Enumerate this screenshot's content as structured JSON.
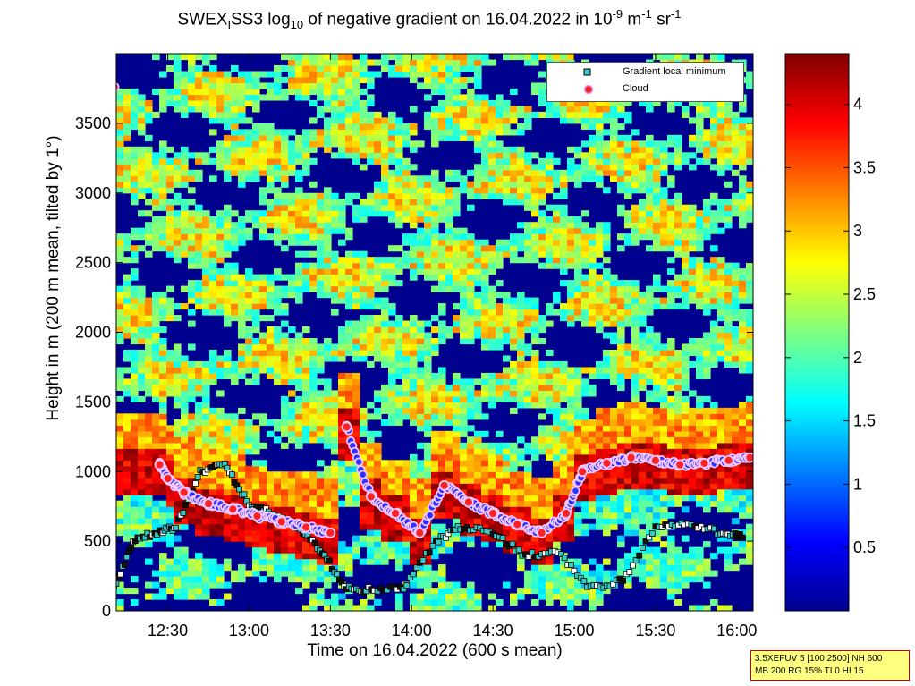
{
  "title": {
    "prefix": "SWEX",
    "sub1": "I",
    "mid": "SS3 log",
    "sub2": "10",
    "rest": " of negative gradient on 16.04.2022 in 10",
    "sup1": "-9",
    "unit1": " m",
    "sup2": "-1",
    "unit2": " sr",
    "sup3": "-1"
  },
  "xlabel": "Time on 16.04.2022 (600 s mean)",
  "ylabel": "Height in m (200 m mean, tilted by 1°)",
  "legend": {
    "entries": [
      {
        "label": "Gradient local minimum",
        "marker": "square",
        "color": "#37c8c8"
      },
      {
        "label": "Cloud",
        "marker": "circle",
        "color": "#ff2222"
      }
    ],
    "location": "top-right"
  },
  "info_box": {
    "line1": "3.5XEFUV 5 [100 2500] NH 600",
    "line2": "MB 200 RG 15% TI 0 HI 15"
  },
  "colors": {
    "background": "#00008f",
    "colormap": "jet",
    "gradient_min_marker": "#37c8c8",
    "cloud_marker": "#ff2222",
    "cloud_marker_edge": "#ffffff"
  },
  "chart_data": {
    "type": "heatmap",
    "x_axis": {
      "label": "Time on 16.04.2022 (600 s mean)",
      "range": [
        "12:11",
        "16:06"
      ],
      "ticks": [
        "12:30",
        "13:00",
        "13:30",
        "14:00",
        "14:30",
        "15:00",
        "15:30",
        "16:00"
      ]
    },
    "y_axis": {
      "label": "Height in m (200 m mean, tilted by 1°)",
      "range": [
        0,
        4000
      ],
      "ticks": [
        0,
        500,
        1000,
        1500,
        2000,
        2500,
        3000,
        3500
      ]
    },
    "colorbar": {
      "range": [
        0,
        4.4
      ],
      "ticks": [
        0.5,
        1,
        1.5,
        2,
        2.5,
        3,
        3.5,
        4
      ],
      "colormap": "jet"
    },
    "series": [
      {
        "name": "Gradient local minimum",
        "time_h": [
          12.17,
          12.3,
          12.45,
          12.55,
          12.7,
          12.85,
          13.0,
          13.15,
          13.3,
          13.45,
          13.6,
          13.75,
          13.95,
          14.15,
          14.3,
          14.5,
          14.7,
          14.9,
          15.1,
          15.3,
          15.5,
          15.7,
          15.9,
          16.05
        ],
        "height_m": [
          180,
          520,
          560,
          600,
          1000,
          1050,
          760,
          700,
          600,
          420,
          160,
          150,
          160,
          500,
          600,
          560,
          400,
          420,
          160,
          220,
          600,
          620,
          560,
          540
        ]
      },
      {
        "name": "Cloud",
        "time_h": [
          12.17,
          12.45,
          12.5,
          12.6,
          12.75,
          12.9,
          13.05,
          13.2,
          13.35,
          13.5,
          13.6,
          13.75,
          13.9,
          14.05,
          14.2,
          14.35,
          14.5,
          14.65,
          14.8,
          14.95,
          15.05,
          15.2,
          15.35,
          15.5,
          15.65,
          15.8,
          15.95,
          16.08
        ],
        "height_m": [
          3760,
          1050,
          950,
          850,
          770,
          730,
          680,
          640,
          600,
          560,
          1320,
          820,
          700,
          560,
          900,
          780,
          700,
          620,
          560,
          700,
          1000,
          1060,
          1100,
          1080,
          1050,
          1060,
          1080,
          1100
        ]
      }
    ]
  }
}
